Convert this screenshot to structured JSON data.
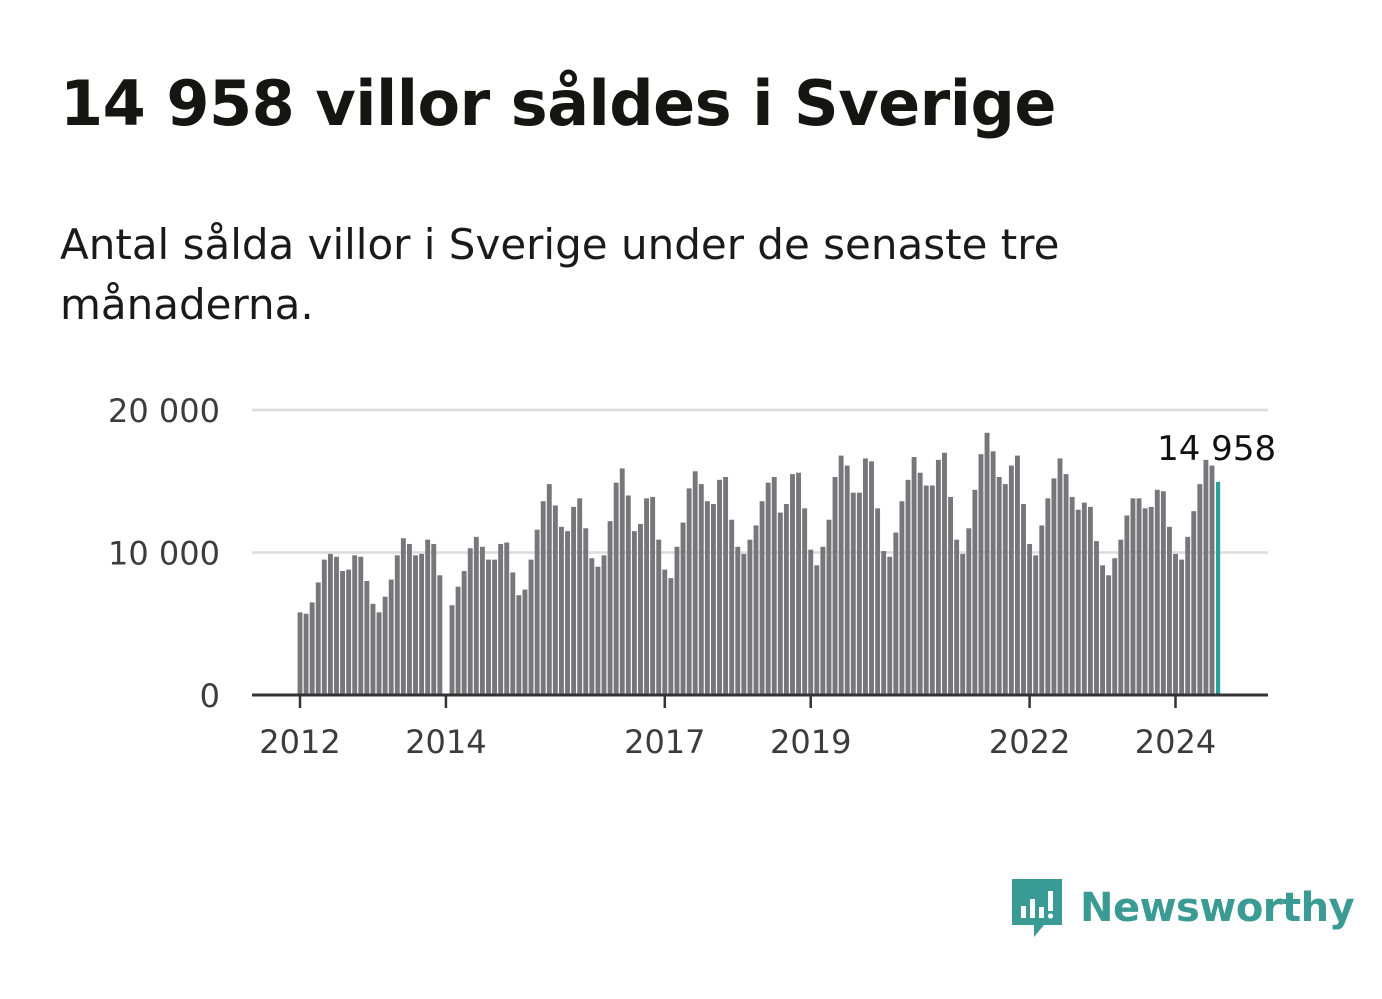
{
  "title": "14 958 villor såldes i Sverige",
  "subtitle": "Antal sålda villor i Sverige under de senaste tre månaderna.",
  "brand": {
    "name": "Newsworthy",
    "icon": "newsworthy-logo-icon",
    "color": "#3a9a94"
  },
  "chart_data": {
    "type": "bar",
    "ylim": [
      0,
      20000
    ],
    "yticks": [
      0,
      10000,
      20000
    ],
    "ytick_labels": [
      "0",
      "10 000",
      "20 000"
    ],
    "xticks": [
      2012,
      2014,
      2017,
      2019,
      2022,
      2024
    ],
    "grid": true,
    "start": "2012-01",
    "end": "2024-09",
    "bar_color": "#77767b",
    "highlight_color": "#2aa198",
    "highlight_label": "14 958",
    "values": [
      5800,
      5700,
      6500,
      7900,
      9500,
      9900,
      9700,
      8700,
      8800,
      9800,
      9700,
      8000,
      6400,
      5800,
      6900,
      8100,
      9800,
      11000,
      10600,
      9800,
      9900,
      10900,
      10600,
      8400,
      null,
      6300,
      7600,
      8700,
      10300,
      11100,
      10400,
      9500,
      9500,
      10600,
      10700,
      8600,
      7000,
      7400,
      9500,
      11600,
      13600,
      14800,
      13300,
      11800,
      11500,
      13200,
      13800,
      11700,
      9600,
      9000,
      9800,
      12200,
      14900,
      15900,
      14000,
      11500,
      12000,
      13800,
      13900,
      10900,
      8800,
      8200,
      10400,
      12100,
      14500,
      15700,
      14800,
      13600,
      13400,
      15100,
      15300,
      12300,
      10400,
      9900,
      10900,
      11900,
      13600,
      14900,
      15300,
      12800,
      13400,
      15500,
      15600,
      13100,
      10200,
      9100,
      10400,
      12300,
      15300,
      16800,
      16100,
      14200,
      14200,
      16600,
      16400,
      13100,
      10100,
      9700,
      11400,
      13600,
      15100,
      16700,
      15600,
      14700,
      14700,
      16500,
      17000,
      13900,
      10900,
      9900,
      11700,
      14400,
      16900,
      18400,
      17100,
      15300,
      14800,
      16100,
      16800,
      13400,
      10600,
      9800,
      11900,
      13800,
      15200,
      16600,
      15500,
      13900,
      13000,
      13500,
      13200,
      10800,
      9100,
      8400,
      9600,
      10900,
      12600,
      13800,
      13800,
      13100,
      13200,
      14400,
      14300,
      11800,
      9900,
      9500,
      11100,
      12900,
      14800,
      16500,
      16100,
      14958
    ]
  }
}
